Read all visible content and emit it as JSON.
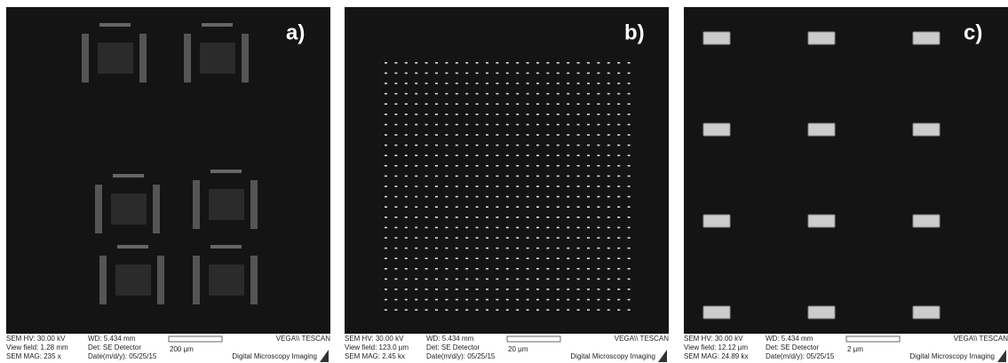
{
  "panels": [
    {
      "label": "a)",
      "info": {
        "hv": "SEM HV: 30.00 kV",
        "view_field": "View field: 1.28 mm",
        "mag": "SEM MAG: 235 x",
        "wd": "WD: 5.434 mm",
        "detector": "Det: SE Detector",
        "date": "Date(m/d/y): 05/25/15",
        "scale": "200 µm",
        "brand": "VEGA\\\\ TESCAN",
        "imaging": "Digital Microscopy Imaging"
      }
    },
    {
      "label": "b)",
      "info": {
        "hv": "SEM HV: 30.00 kV",
        "view_field": "View field: 123.0 µm",
        "mag": "SEM MAG: 2.45 kx",
        "wd": "WD: 5.434 mm",
        "detector": "Det: SE Detector",
        "date": "Date(m/d/y): 05/25/15",
        "scale": "20 µm",
        "brand": "VEGA\\\\ TESCAN",
        "imaging": "Digital Microscopy Imaging"
      }
    },
    {
      "label": "c)",
      "info": {
        "hv": "SEM HV: 30.00 kV",
        "view_field": "View field: 12.12 µm",
        "mag": "SEM MAG: 24.89 kx",
        "wd": "WD: 5.434 mm",
        "detector": "Det: SE Detector",
        "date": "Date(m/d/y): 05/25/15",
        "scale": "2 µm",
        "brand": "VEGA\\\\ TESCAN",
        "imaging": "Digital Microscopy Imaging"
      }
    }
  ]
}
